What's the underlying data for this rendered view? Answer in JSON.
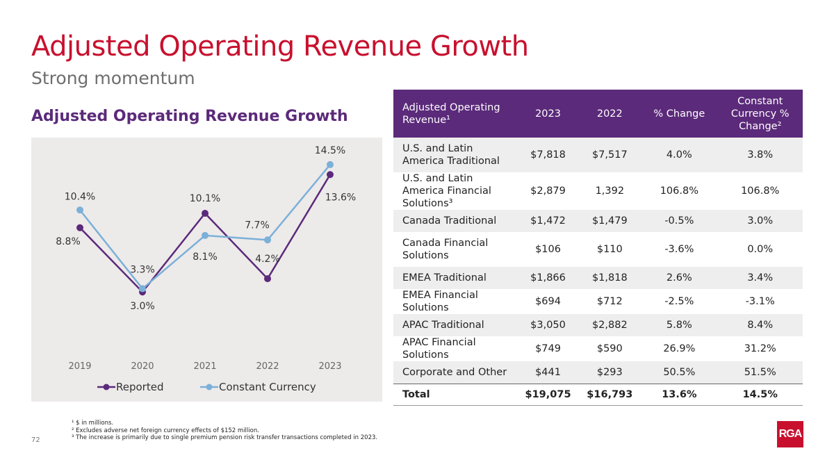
{
  "title": "Adjusted Operating Revenue Growth",
  "subtitle": "Strong momentum",
  "chart_heading": "Adjusted Operating Revenue Growth",
  "colors": {
    "title": "#c8102e",
    "purple": "#5b2a7a",
    "light_blue": "#7bb0d8"
  },
  "chart_data": {
    "type": "line",
    "title": "Adjusted Operating Revenue Growth",
    "x": [
      "2019",
      "2020",
      "2021",
      "2022",
      "2023"
    ],
    "series": [
      {
        "name": "Reported",
        "values": [
          8.8,
          3.0,
          10.1,
          4.2,
          13.6
        ],
        "labels": [
          "8.8%",
          "3.0%",
          "10.1%",
          "4.2%",
          "13.6%"
        ],
        "color": "#5b2a7a"
      },
      {
        "name": "Constant Currency",
        "values": [
          10.4,
          3.3,
          8.1,
          7.7,
          14.5
        ],
        "labels": [
          "10.4%",
          "3.3%",
          "8.1%",
          "7.7%",
          "14.5%"
        ],
        "color": "#7bb0d8"
      }
    ],
    "ylim": [
      0,
      16
    ],
    "grid": false,
    "legend": "bottom"
  },
  "table": {
    "headers": [
      "Adjusted Operating Revenue¹",
      "2023",
      "2022",
      "% Change",
      "Constant Currency % Change²"
    ],
    "rows": [
      [
        "U.S. and Latin America Traditional",
        "$7,818",
        "$7,517",
        "4.0%",
        "3.8%"
      ],
      [
        "U.S. and Latin America Financial Solutions³",
        "$2,879",
        "1,392",
        "106.8%",
        "106.8%"
      ],
      [
        "Canada Traditional",
        "$1,472",
        "$1,479",
        "-0.5%",
        "3.0%"
      ],
      [
        "Canada Financial Solutions",
        "$106",
        "$110",
        "-3.6%",
        "0.0%"
      ],
      [
        "EMEA Traditional",
        "$1,866",
        "$1,818",
        "2.6%",
        "3.4%"
      ],
      [
        "EMEA Financial Solutions",
        "$694",
        "$712",
        "-2.5%",
        "-3.1%"
      ],
      [
        "APAC Traditional",
        "$3,050",
        "$2,882",
        "5.8%",
        "8.4%"
      ],
      [
        "APAC Financial Solutions",
        "$749",
        "$590",
        "26.9%",
        "31.2%"
      ],
      [
        "Corporate and Other",
        "$441",
        "$293",
        "50.5%",
        "51.5%"
      ]
    ],
    "total": [
      "Total",
      "$19,075",
      "$16,793",
      "13.6%",
      "14.5%"
    ]
  },
  "footnotes": [
    "¹ $ in millions.",
    "² Excludes adverse net foreign currency effects of $152 million.",
    "³ The increase is primarily due to single premium pension risk transfer transactions completed in 2023."
  ],
  "page_number": "72",
  "logo_text": "RGA"
}
